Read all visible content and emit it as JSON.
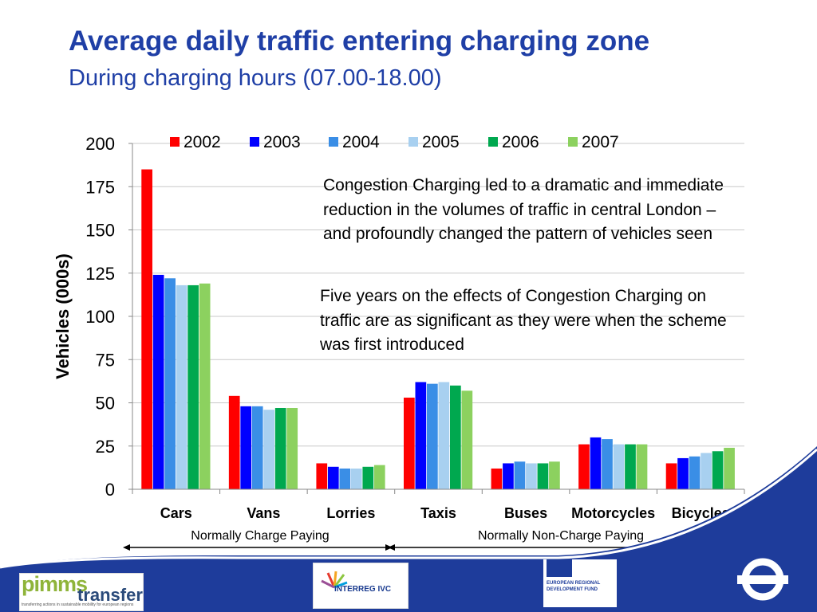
{
  "chart_data": {
    "type": "bar",
    "title": "Average daily traffic entering charging zone",
    "subtitle": "During charging hours (07.00-18.00)",
    "ylabel": "Vehicles (000s)",
    "xlabel": "",
    "ylim": [
      0,
      200
    ],
    "yticks": [
      "0",
      "25",
      "50",
      "75",
      "100",
      "125",
      "150",
      "175",
      "200"
    ],
    "grid": true,
    "legend_placement": "top",
    "categories": [
      "Cars",
      "Vans",
      "Lorries",
      "Taxis",
      "Buses",
      "Motorcycles",
      "Bicycles"
    ],
    "series": [
      {
        "name": "2002",
        "color": "#ff0000",
        "values": [
          185,
          54,
          15,
          53,
          12,
          26,
          15
        ]
      },
      {
        "name": "2003",
        "color": "#0000ff",
        "values": [
          124,
          48,
          13,
          62,
          15,
          30,
          18
        ]
      },
      {
        "name": "2004",
        "color": "#3a8ee6",
        "values": [
          122,
          48,
          12,
          61,
          16,
          29,
          19
        ]
      },
      {
        "name": "2005",
        "color": "#a8d0f0",
        "values": [
          118,
          46,
          12,
          62,
          15,
          26,
          21
        ]
      },
      {
        "name": "2006",
        "color": "#00a84f",
        "values": [
          118,
          47,
          13,
          60,
          15,
          26,
          22
        ]
      },
      {
        "name": "2007",
        "color": "#8cd15f",
        "values": [
          119,
          47,
          14,
          57,
          16,
          26,
          24
        ]
      }
    ],
    "groups": [
      {
        "label": "Normally Charge Paying"
      },
      {
        "label": "Normally Non-Charge Paying"
      }
    ]
  },
  "notes": [
    "Congestion Charging led to a dramatic and immediate reduction in the volumes of traffic in central London – and profoundly changed the pattern of vehicles seen",
    "Five years on the effects of Congestion Charging on traffic are as significant as they were when the scheme was first introduced"
  ],
  "footer": {
    "pimms_logo": {
      "word1": "pimms",
      "word2": "transfer",
      "tagline": "transferring actions in sustainable mobility for european regions"
    },
    "interreg_logo": {
      "text": "INTERREG IVC"
    },
    "erdf_logo": {
      "text": "EUROPEAN REGIONAL DEVELOPMENT FUND"
    },
    "colors": {
      "band": "#1e3c9b",
      "accent": "#ffffff"
    }
  }
}
